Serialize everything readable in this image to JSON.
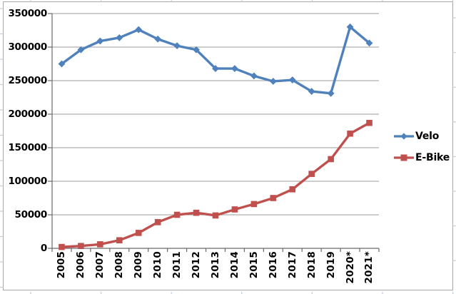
{
  "chart_data": {
    "type": "line",
    "title": "",
    "xlabel": "",
    "ylabel": "",
    "categories": [
      "2005",
      "2006",
      "2007",
      "2008",
      "2009",
      "2010",
      "2011",
      "2012",
      "2013",
      "2014",
      "2015",
      "2016",
      "2017",
      "2018",
      "2019",
      "2020*",
      "2021*"
    ],
    "series": [
      {
        "name": "Velo",
        "color": "#4F81BD",
        "marker": "diamond",
        "values": [
          275000,
          296000,
          309000,
          314000,
          326000,
          312000,
          302000,
          296000,
          268000,
          268000,
          257000,
          249000,
          251000,
          234000,
          231000,
          330000,
          306000
        ]
      },
      {
        "name": "E-Bike",
        "color": "#C0504D",
        "marker": "square",
        "values": [
          2000,
          3500,
          6000,
          12000,
          23000,
          39000,
          50000,
          53000,
          49000,
          58000,
          66000,
          75000,
          88000,
          111000,
          133000,
          171000,
          187000
        ]
      }
    ],
    "ylim": [
      0,
      350000
    ],
    "ytick_interval": 50000,
    "ytick_labels": [
      "0",
      "50000",
      "100000",
      "150000",
      "200000",
      "250000",
      "300000",
      "350000"
    ],
    "grid": "horizontal-only",
    "legend_position": "right",
    "x_tick_label_rotation": "vertical-bottom-to-top"
  },
  "colors": {
    "velo_series": "#4F81BD",
    "ebike_series": "#C0504D",
    "gridline": "#9b9b9b",
    "axis": "#6a6a6a",
    "chart_border": "#a8a8a8",
    "sheet_gridline_stub": "#c3cfdd",
    "label_text": "#000000",
    "background": "#FFFFFF"
  }
}
